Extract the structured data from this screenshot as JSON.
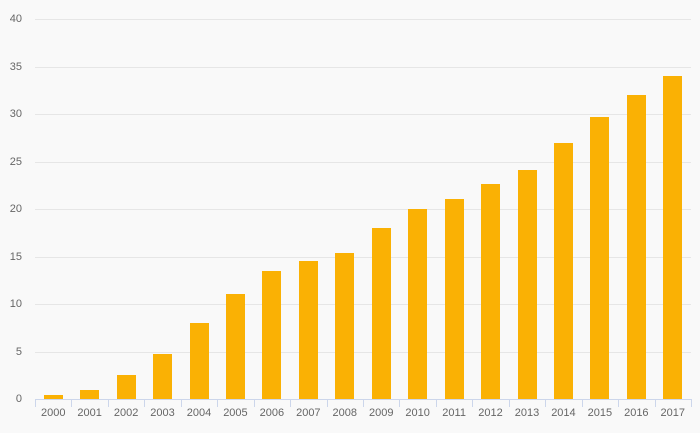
{
  "chart_data": {
    "type": "bar",
    "title": "",
    "xlabel": "",
    "ylabel": "",
    "categories": [
      "2000",
      "2001",
      "2002",
      "2003",
      "2004",
      "2005",
      "2006",
      "2007",
      "2008",
      "2009",
      "2010",
      "2011",
      "2012",
      "2013",
      "2014",
      "2015",
      "2016",
      "2017"
    ],
    "values": [
      0.4,
      1.0,
      2.5,
      4.7,
      8.0,
      11.1,
      13.5,
      14.5,
      15.4,
      18.0,
      20.0,
      21.1,
      22.6,
      24.1,
      27.0,
      29.7,
      32.0,
      34.0
    ],
    "ylim": [
      0,
      40
    ],
    "yticks": [
      0,
      5,
      10,
      15,
      20,
      25,
      30,
      35,
      40
    ],
    "grid": "horizontal-only",
    "legend": "none",
    "colors": {
      "bar": "#FAB104",
      "background": "#F9F9F9",
      "gridline": "#E6E6E6",
      "axis_line": "#CCD6EB",
      "label_text": "#666666"
    }
  }
}
